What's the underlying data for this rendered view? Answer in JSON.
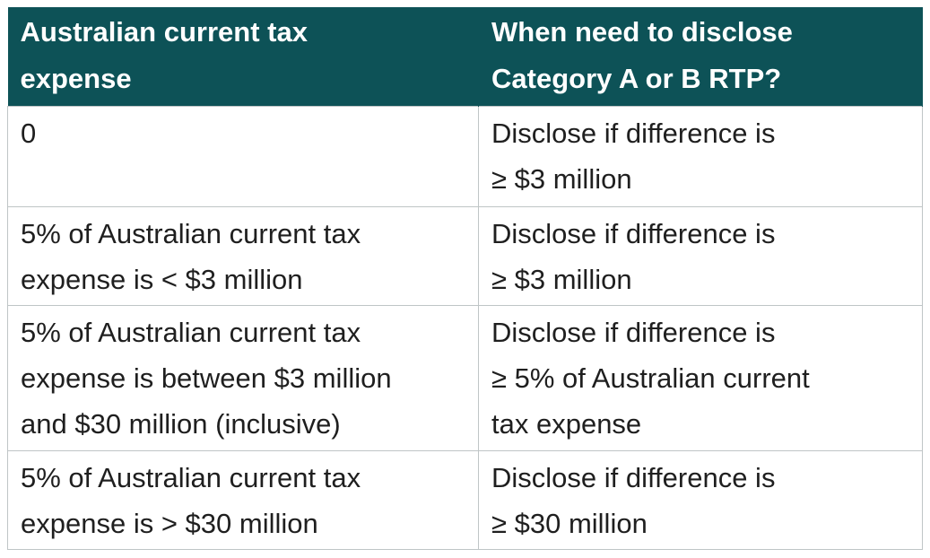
{
  "table": {
    "headers": [
      "Australian current tax\nexpense",
      "When need to disclose\nCategory A or B RTP?"
    ],
    "rows": [
      [
        "0",
        "Disclose if difference is\n≥ $3 million"
      ],
      [
        "5% of Australian current tax\nexpense is < $3 million",
        "Disclose if difference is\n≥ $3 million"
      ],
      [
        "5% of Australian current tax\nexpense is between $3 million\nand $30 million (inclusive)",
        "Disclose if difference is\n≥ 5% of Australian current\ntax expense"
      ],
      [
        "5% of Australian current tax\nexpense is > $30 million",
        "Disclose if difference is\n≥ $30 million"
      ]
    ]
  },
  "colors": {
    "header_background": "#0d5257",
    "header_text": "#ffffff",
    "body_text": "#1f1f1f",
    "border": "#bfc5c6"
  }
}
